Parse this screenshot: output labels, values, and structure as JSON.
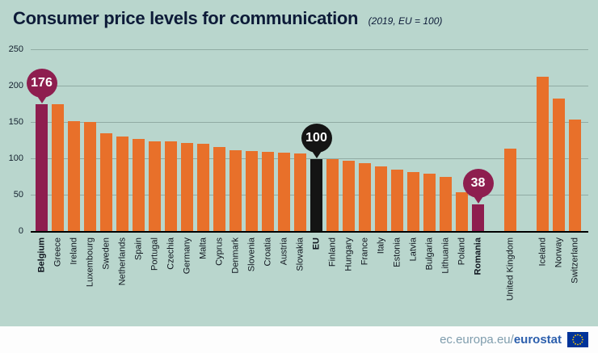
{
  "title": "Consumer price levels for communication",
  "subtitle": "(2019, EU = 100)",
  "footer": {
    "url_prefix": "ec.europa.eu/",
    "brand": "eurostat"
  },
  "colors": {
    "bar": "#e8702a",
    "highlight": "#8e1e4f",
    "eu": "#141414",
    "background": "#b9d6cd",
    "balloon_text": "#ffffff",
    "brand_blue": "#2c5fad",
    "flag_blue": "#003399",
    "flag_star": "#ffcc00"
  },
  "chart_data": {
    "type": "bar",
    "title": "Consumer price levels for communication",
    "subtitle": "(2019, EU = 100)",
    "xlabel": "",
    "ylabel": "",
    "ylim": [
      0,
      250
    ],
    "yticks": [
      0,
      50,
      100,
      150,
      200,
      250
    ],
    "grid": true,
    "items": [
      {
        "label": "Belgium",
        "value": 176,
        "color": "highlight",
        "bold": true,
        "balloon": "176"
      },
      {
        "label": "Greece",
        "value": 176
      },
      {
        "label": "Ireland",
        "value": 152
      },
      {
        "label": "Luxembourg",
        "value": 151
      },
      {
        "label": "Sweden",
        "value": 136
      },
      {
        "label": "Netherlands",
        "value": 131
      },
      {
        "label": "Spain",
        "value": 128
      },
      {
        "label": "Portugal",
        "value": 125
      },
      {
        "label": "Czechia",
        "value": 124
      },
      {
        "label": "Germany",
        "value": 122
      },
      {
        "label": "Malta",
        "value": 121
      },
      {
        "label": "Cyprus",
        "value": 117
      },
      {
        "label": "Denmark",
        "value": 112
      },
      {
        "label": "Slovenia",
        "value": 111
      },
      {
        "label": "Croatia",
        "value": 110
      },
      {
        "label": "Austria",
        "value": 109
      },
      {
        "label": "Slovakia",
        "value": 108
      },
      {
        "label": "EU",
        "value": 100,
        "color": "eu",
        "bold": true,
        "balloon": "100"
      },
      {
        "label": "Finland",
        "value": 100
      },
      {
        "label": "Hungary",
        "value": 98
      },
      {
        "label": "France",
        "value": 94
      },
      {
        "label": "Italy",
        "value": 90
      },
      {
        "label": "Estonia",
        "value": 86
      },
      {
        "label": "Latvia",
        "value": 82
      },
      {
        "label": "Bulgaria",
        "value": 80
      },
      {
        "label": "Lithuania",
        "value": 76
      },
      {
        "label": "Poland",
        "value": 54
      },
      {
        "label": "Romania",
        "value": 38,
        "color": "highlight",
        "bold": true,
        "balloon": "38"
      },
      {
        "type": "spacer"
      },
      {
        "label": "United Kingdom",
        "value": 115
      },
      {
        "type": "spacer"
      },
      {
        "label": "Iceland",
        "value": 213
      },
      {
        "label": "Norway",
        "value": 183
      },
      {
        "label": "Switzerland",
        "value": 154
      }
    ]
  }
}
